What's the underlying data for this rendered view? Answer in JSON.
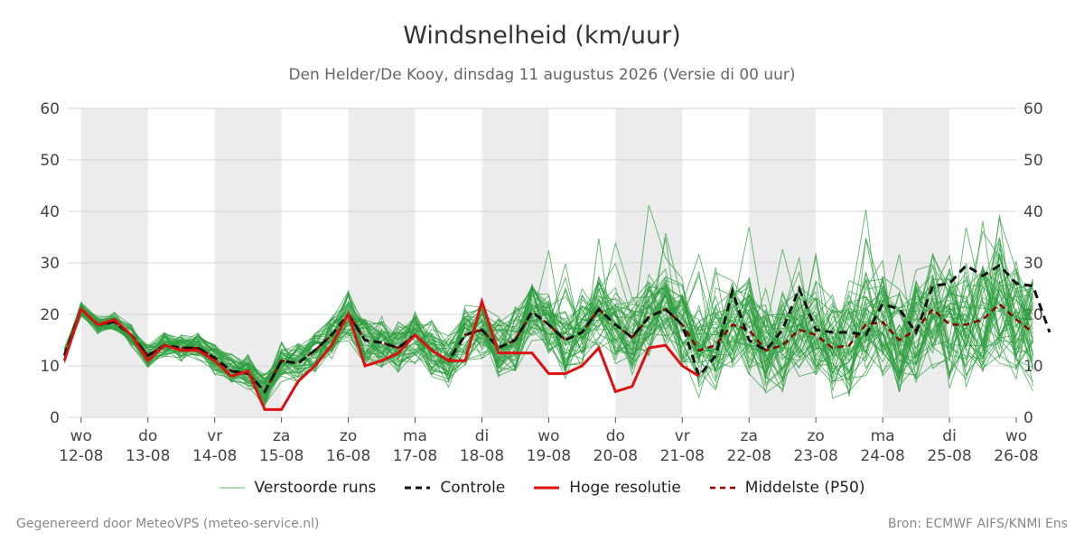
{
  "title": "Windsnelheid (km/uur)",
  "subtitle": "Den Helder/De Kooy, dinsdag 11 augustus 2026 (Versie di 00 uur)",
  "footer_left": "Gegenereerd door MeteoVPS (meteo-service.nl)",
  "footer_right": "Bron: ECMWF AIFS/KNMI Ens",
  "colors": {
    "ensemble": "#2e9e3e",
    "controle": "#111111",
    "hoge_resolutie": "#dd1111",
    "middelste": "#8b0000",
    "weekend_band": "#ececec",
    "grid": "#d6d6d6"
  },
  "legend": [
    {
      "key": "ensemble",
      "label": "Verstoorde runs",
      "style": "thin"
    },
    {
      "key": "controle",
      "label": "Controle",
      "style": "dashed"
    },
    {
      "key": "hoge_resolutie",
      "label": "Hoge resolutie",
      "style": "solid"
    },
    {
      "key": "middelste",
      "label": "Middelste (P50)",
      "style": "dashed"
    }
  ],
  "chart_data": {
    "type": "line",
    "title": "Windsnelheid (km/uur)",
    "subtitle": "Den Helder/De Kooy, dinsdag 11 augustus 2026 (Versie di 00 uur)",
    "x_unit": "days after 11-08-2026 00 uur",
    "xlim": [
      11.8,
      26
    ],
    "ylim": [
      0,
      60
    ],
    "y_ticks": [
      0,
      10,
      20,
      30,
      40,
      50,
      60
    ],
    "y_axis_both_sides": true,
    "grid": true,
    "legend_position": "bottom",
    "x_ticks": [
      {
        "day": "wo",
        "date": "12-08"
      },
      {
        "day": "do",
        "date": "13-08"
      },
      {
        "day": "vr",
        "date": "14-08"
      },
      {
        "day": "za",
        "date": "15-08"
      },
      {
        "day": "zo",
        "date": "16-08"
      },
      {
        "day": "ma",
        "date": "17-08"
      },
      {
        "day": "di",
        "date": "18-08"
      },
      {
        "day": "wo",
        "date": "19-08"
      },
      {
        "day": "do",
        "date": "20-08"
      },
      {
        "day": "vr",
        "date": "21-08"
      },
      {
        "day": "za",
        "date": "22-08"
      },
      {
        "day": "zo",
        "date": "23-08"
      },
      {
        "day": "ma",
        "date": "24-08"
      },
      {
        "day": "di",
        "date": "25-08"
      },
      {
        "day": "wo",
        "date": "26-08"
      }
    ],
    "shaded_days": [
      "12-08",
      "14-08",
      "16-08",
      "18-08",
      "20-08",
      "22-08",
      "24-08"
    ],
    "series": [
      {
        "name": "Hoge resolutie",
        "values": [
          11,
          21,
          18,
          19,
          16,
          11,
          14,
          13,
          13,
          11,
          8,
          9,
          1.5,
          1.5,
          7,
          10,
          14,
          20,
          10,
          11,
          12.5,
          16,
          13,
          11,
          11,
          22.5,
          12.5,
          12.5,
          12.5,
          8.5,
          8.5,
          10,
          13.5,
          5,
          6,
          13.5,
          14,
          10,
          8
        ]
      },
      {
        "name": "Controle",
        "values": [
          12,
          21,
          18,
          18.5,
          16,
          12,
          14,
          13.5,
          13.5,
          11.5,
          9,
          8.5,
          5,
          11,
          10.5,
          13,
          16,
          20,
          15,
          14.5,
          13.5,
          16,
          13,
          11,
          16,
          17,
          13.5,
          15,
          20.5,
          18,
          15,
          16.5,
          21,
          18,
          15.5,
          19.5,
          21,
          18,
          8,
          12,
          24.5,
          15,
          13,
          17,
          25,
          17,
          16.5,
          16.5,
          16,
          22,
          21,
          16.5,
          25.5,
          26,
          29.5,
          27.5,
          29.5,
          26,
          25.5,
          16.5
        ]
      },
      {
        "name": "Middelste (P50)",
        "values": [
          12,
          21,
          18,
          18.5,
          16,
          12,
          14,
          13.5,
          13.5,
          11.5,
          9,
          8.5,
          5,
          11,
          10.5,
          13,
          16,
          20,
          15,
          14.5,
          13.5,
          16,
          13,
          11,
          16,
          17,
          13.5,
          15,
          20.5,
          18,
          15,
          16.5,
          21,
          18,
          15.5,
          19.5,
          21,
          18,
          13,
          14,
          18,
          17,
          13,
          14,
          17,
          16,
          13.5,
          14,
          18,
          18.5,
          15,
          17,
          21,
          18,
          18,
          19,
          22,
          19,
          16.5
        ]
      }
    ],
    "ensemble_note": "Verstoorde runs"
  }
}
